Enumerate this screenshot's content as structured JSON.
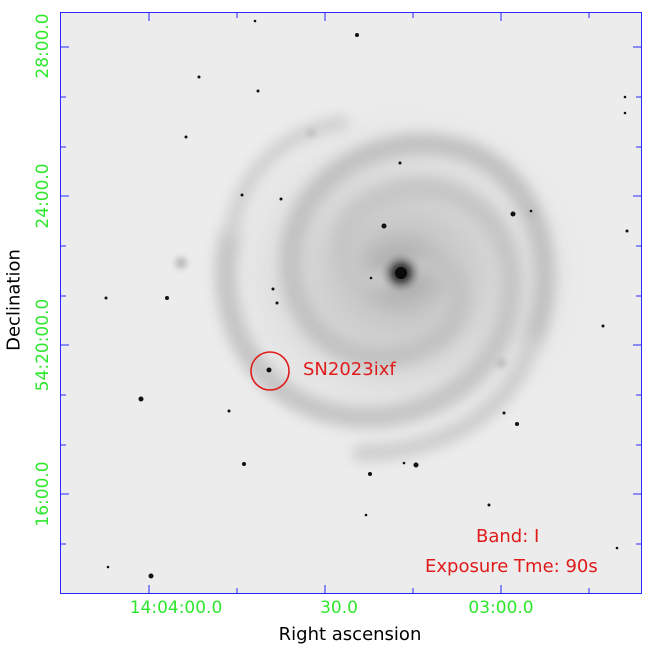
{
  "axes": {
    "y_title": "Declination",
    "x_title": "Right ascension",
    "y_ticks": [
      "28:00.0",
      "24:00.0",
      "54:20:00.0",
      "16:00.0"
    ],
    "x_ticks": [
      "14:04:00.0",
      "30.0",
      "03:00.0"
    ]
  },
  "annotations": {
    "target_label": "SN2023ixf",
    "band": "Band: I",
    "exposure": "Exposure Tme: 90s"
  },
  "colors": {
    "tick_labels": "#2ee82e",
    "frame_ticks": "#2a2aff",
    "annotation": "#e01b1b"
  }
}
